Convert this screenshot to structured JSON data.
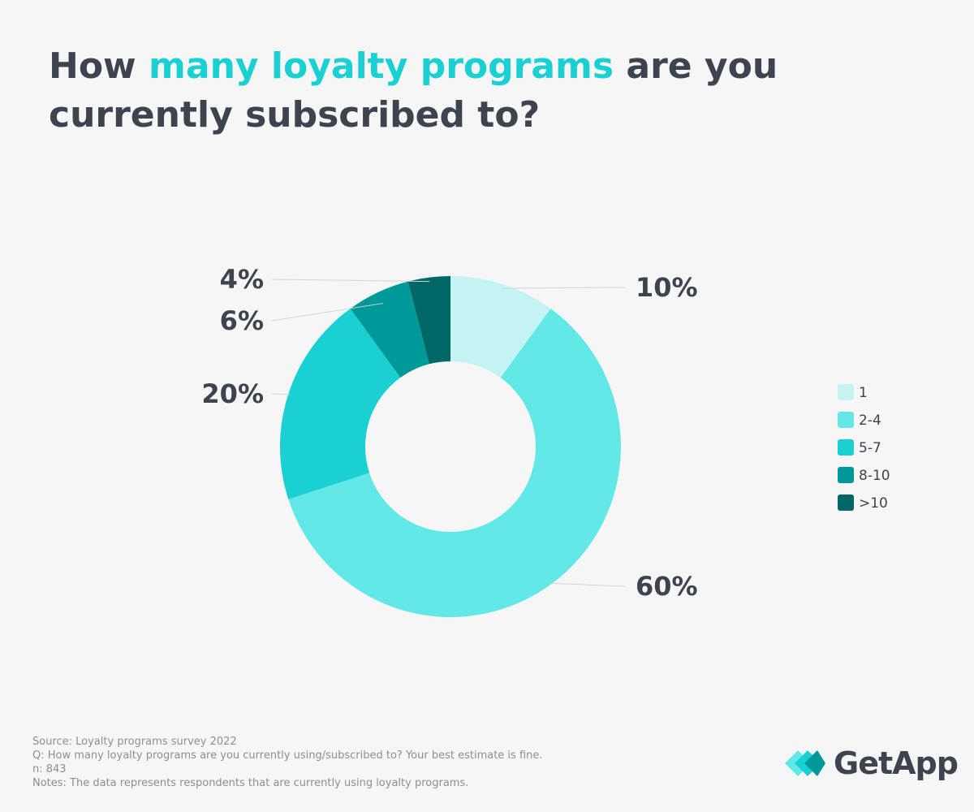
{
  "chart_data": {
    "type": "donut",
    "title": [
      "How",
      "many loyalty programs",
      "are you currently subscribed to?"
    ],
    "categories": [
      "1",
      "2-4",
      "5-7",
      "8-10",
      ">10"
    ],
    "values": [
      10,
      60,
      20,
      6,
      4
    ],
    "value_labels": [
      "10%",
      "60%",
      "20%",
      "6%",
      "4%"
    ],
    "colors": [
      "#c3f3f2",
      "#63e8e8",
      "#1ad0d2",
      "#009999",
      "#006666"
    ],
    "legend": "right"
  },
  "notes": [
    "Source: Loyalty programs survey 2022",
    "Q: How many loyalty programs are you currently using/subscribed to? Your best estimate is fine.",
    "n: 843",
    "Notes: The data represents respondents that are currently using loyalty programs."
  ],
  "logo": "GetApp"
}
